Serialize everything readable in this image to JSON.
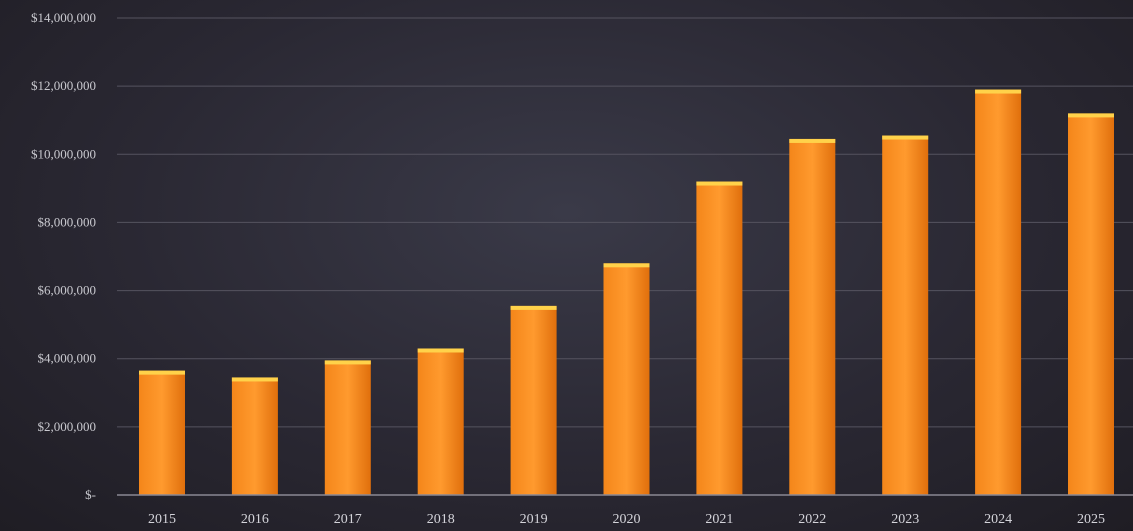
{
  "chart_data": {
    "type": "bar",
    "categories": [
      "2015",
      "2016",
      "2017",
      "2018",
      "2019",
      "2020",
      "2021",
      "2022",
      "2023",
      "2024",
      "2025"
    ],
    "values": [
      3650000,
      3450000,
      3950000,
      4300000,
      5550000,
      6800000,
      9200000,
      10450000,
      10550000,
      11900000,
      11200000
    ],
    "ylim": [
      0,
      14000000
    ],
    "y_ticks": [
      {
        "value": 0,
        "label": "$-"
      },
      {
        "value": 2000000,
        "label": "$2,000,000"
      },
      {
        "value": 4000000,
        "label": "$4,000,000"
      },
      {
        "value": 6000000,
        "label": "$6,000,000"
      },
      {
        "value": 8000000,
        "label": "$8,000,000"
      },
      {
        "value": 10000000,
        "label": "$10,000,000"
      },
      {
        "value": 12000000,
        "label": "$12,000,000"
      },
      {
        "value": 14000000,
        "label": "$14,000,000"
      }
    ],
    "grid": true,
    "bar_color": "#f07d12",
    "bar_top_color": "#ffd24a"
  }
}
